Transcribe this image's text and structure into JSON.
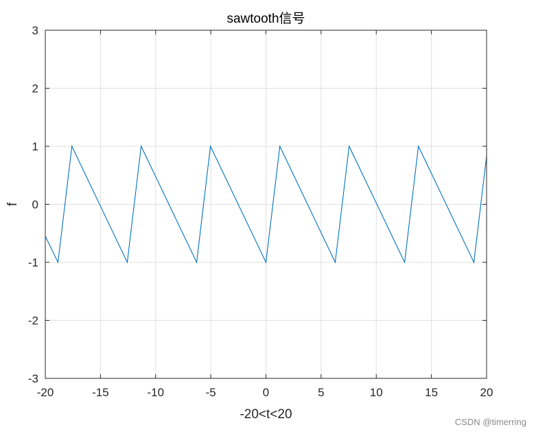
{
  "chart_data": {
    "type": "line",
    "title": "sawtooth信号",
    "xlabel": "-20<t<20",
    "ylabel": "f",
    "xlim": [
      -20,
      20
    ],
    "ylim": [
      -3,
      3
    ],
    "xticks": [
      -20,
      -15,
      -10,
      -5,
      0,
      5,
      10,
      15,
      20
    ],
    "yticks": [
      -3,
      -2,
      -1,
      0,
      1,
      2,
      3
    ],
    "xtick_labels": [
      "-20",
      "-15",
      "-10",
      "-5",
      "0",
      "5",
      "10",
      "15",
      "20"
    ],
    "ytick_labels": [
      "-3",
      "-2",
      "-1",
      "0",
      "1",
      "2",
      "3"
    ],
    "grid": true,
    "series": [
      {
        "color": "#0072BD",
        "x": [
          -20,
          -18.85,
          -17.59,
          -12.57,
          -11.31,
          -6.28,
          -5.03,
          0,
          1.26,
          6.28,
          7.54,
          12.57,
          13.82,
          18.85,
          20
        ],
        "y": [
          -0.55,
          -1,
          1,
          -1,
          1,
          -1,
          1,
          -1,
          1,
          -1,
          1,
          -1,
          1,
          -1,
          0.83
        ]
      }
    ]
  },
  "watermark": "CSDN @timerring"
}
